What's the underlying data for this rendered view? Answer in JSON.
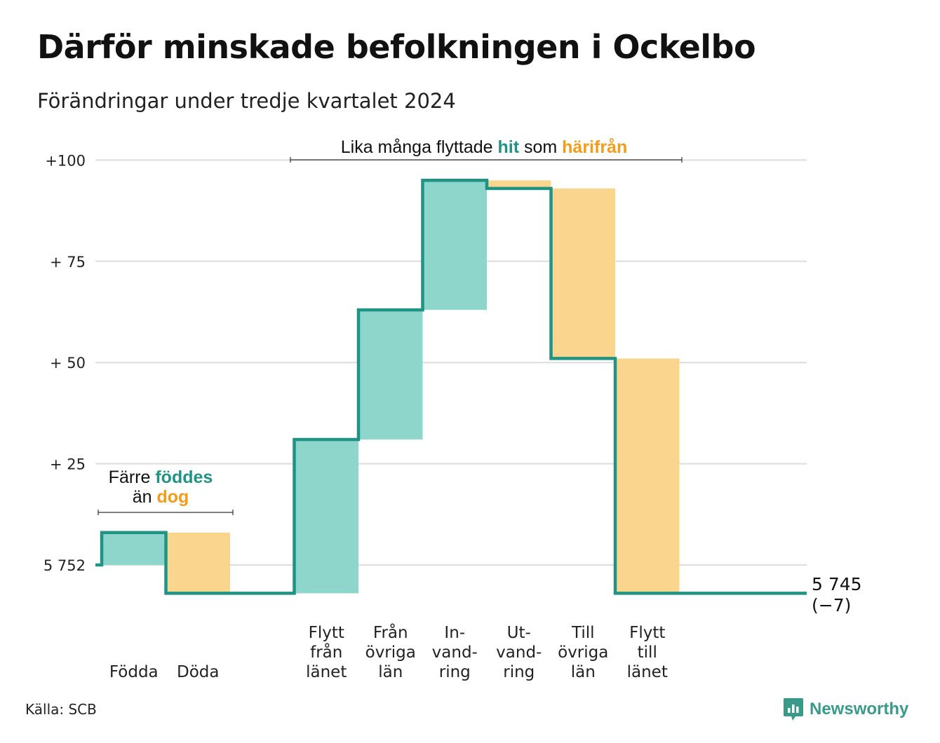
{
  "title": "Därför minskade befolkningen i Ockelbo",
  "subtitle": "Förändringar under tredje kvartalet 2024",
  "source": "Källa: SCB",
  "brand": "Newsworthy",
  "colors": {
    "increase": "#8ed5cc",
    "decrease": "#fad58e",
    "step_line": "#1f9484",
    "teal_text": "#1f9484",
    "orange_text": "#f39c1a",
    "grid": "#dddddd"
  },
  "annotations": {
    "births_deaths": {
      "line1_prefix": "Färre",
      "line1_highlight": "föddes",
      "line2_prefix": "än",
      "line2_highlight": "dog"
    },
    "migration": {
      "prefix": "Lika många flyttade",
      "highlight_in": "hit",
      "middle": "som",
      "highlight_out": "härifrån"
    }
  },
  "chart_data": {
    "type": "waterfall",
    "title": "Därför minskade befolkningen i Ockelbo",
    "subtitle": "Förändringar under tredje kvartalet 2024",
    "base_value": 5752,
    "base_label": "5 752",
    "y_ticks": [
      {
        "value": 0,
        "label": "5 752"
      },
      {
        "value": 25,
        "label": "+ 25"
      },
      {
        "value": 50,
        "label": "+ 50"
      },
      {
        "value": 75,
        "label": "+ 75"
      },
      {
        "value": 100,
        "label": "+100"
      }
    ],
    "ylim": [
      -12,
      105
    ],
    "grid": true,
    "steps": [
      {
        "label": "Födda",
        "lines": [
          "Födda"
        ],
        "change": 8,
        "kind": "increase"
      },
      {
        "label": "Döda",
        "lines": [
          "Döda"
        ],
        "change": -15,
        "kind": "decrease"
      },
      {
        "label": "",
        "lines": [],
        "change": 0,
        "kind": "none"
      },
      {
        "label": "Flytt från länet",
        "lines": [
          "Flytt",
          "från",
          "länet"
        ],
        "change": 38,
        "kind": "increase"
      },
      {
        "label": "Från övriga län",
        "lines": [
          "Från",
          "övriga",
          "län"
        ],
        "change": 32,
        "kind": "increase"
      },
      {
        "label": "In-vand-ring",
        "lines": [
          "In-",
          "vand-",
          "ring"
        ],
        "change": 32,
        "kind": "increase"
      },
      {
        "label": "Ut-vand-ring",
        "lines": [
          "Ut-",
          "vand-",
          "ring"
        ],
        "change": -2,
        "kind": "decrease"
      },
      {
        "label": "Till övriga län",
        "lines": [
          "Till",
          "övriga",
          "län"
        ],
        "change": -42,
        "kind": "decrease"
      },
      {
        "label": "Flytt till länet",
        "lines": [
          "Flytt",
          "till",
          "länet"
        ],
        "change": -58,
        "kind": "decrease"
      }
    ],
    "end_value_label": "5 745",
    "end_change_label": "(−7)"
  }
}
